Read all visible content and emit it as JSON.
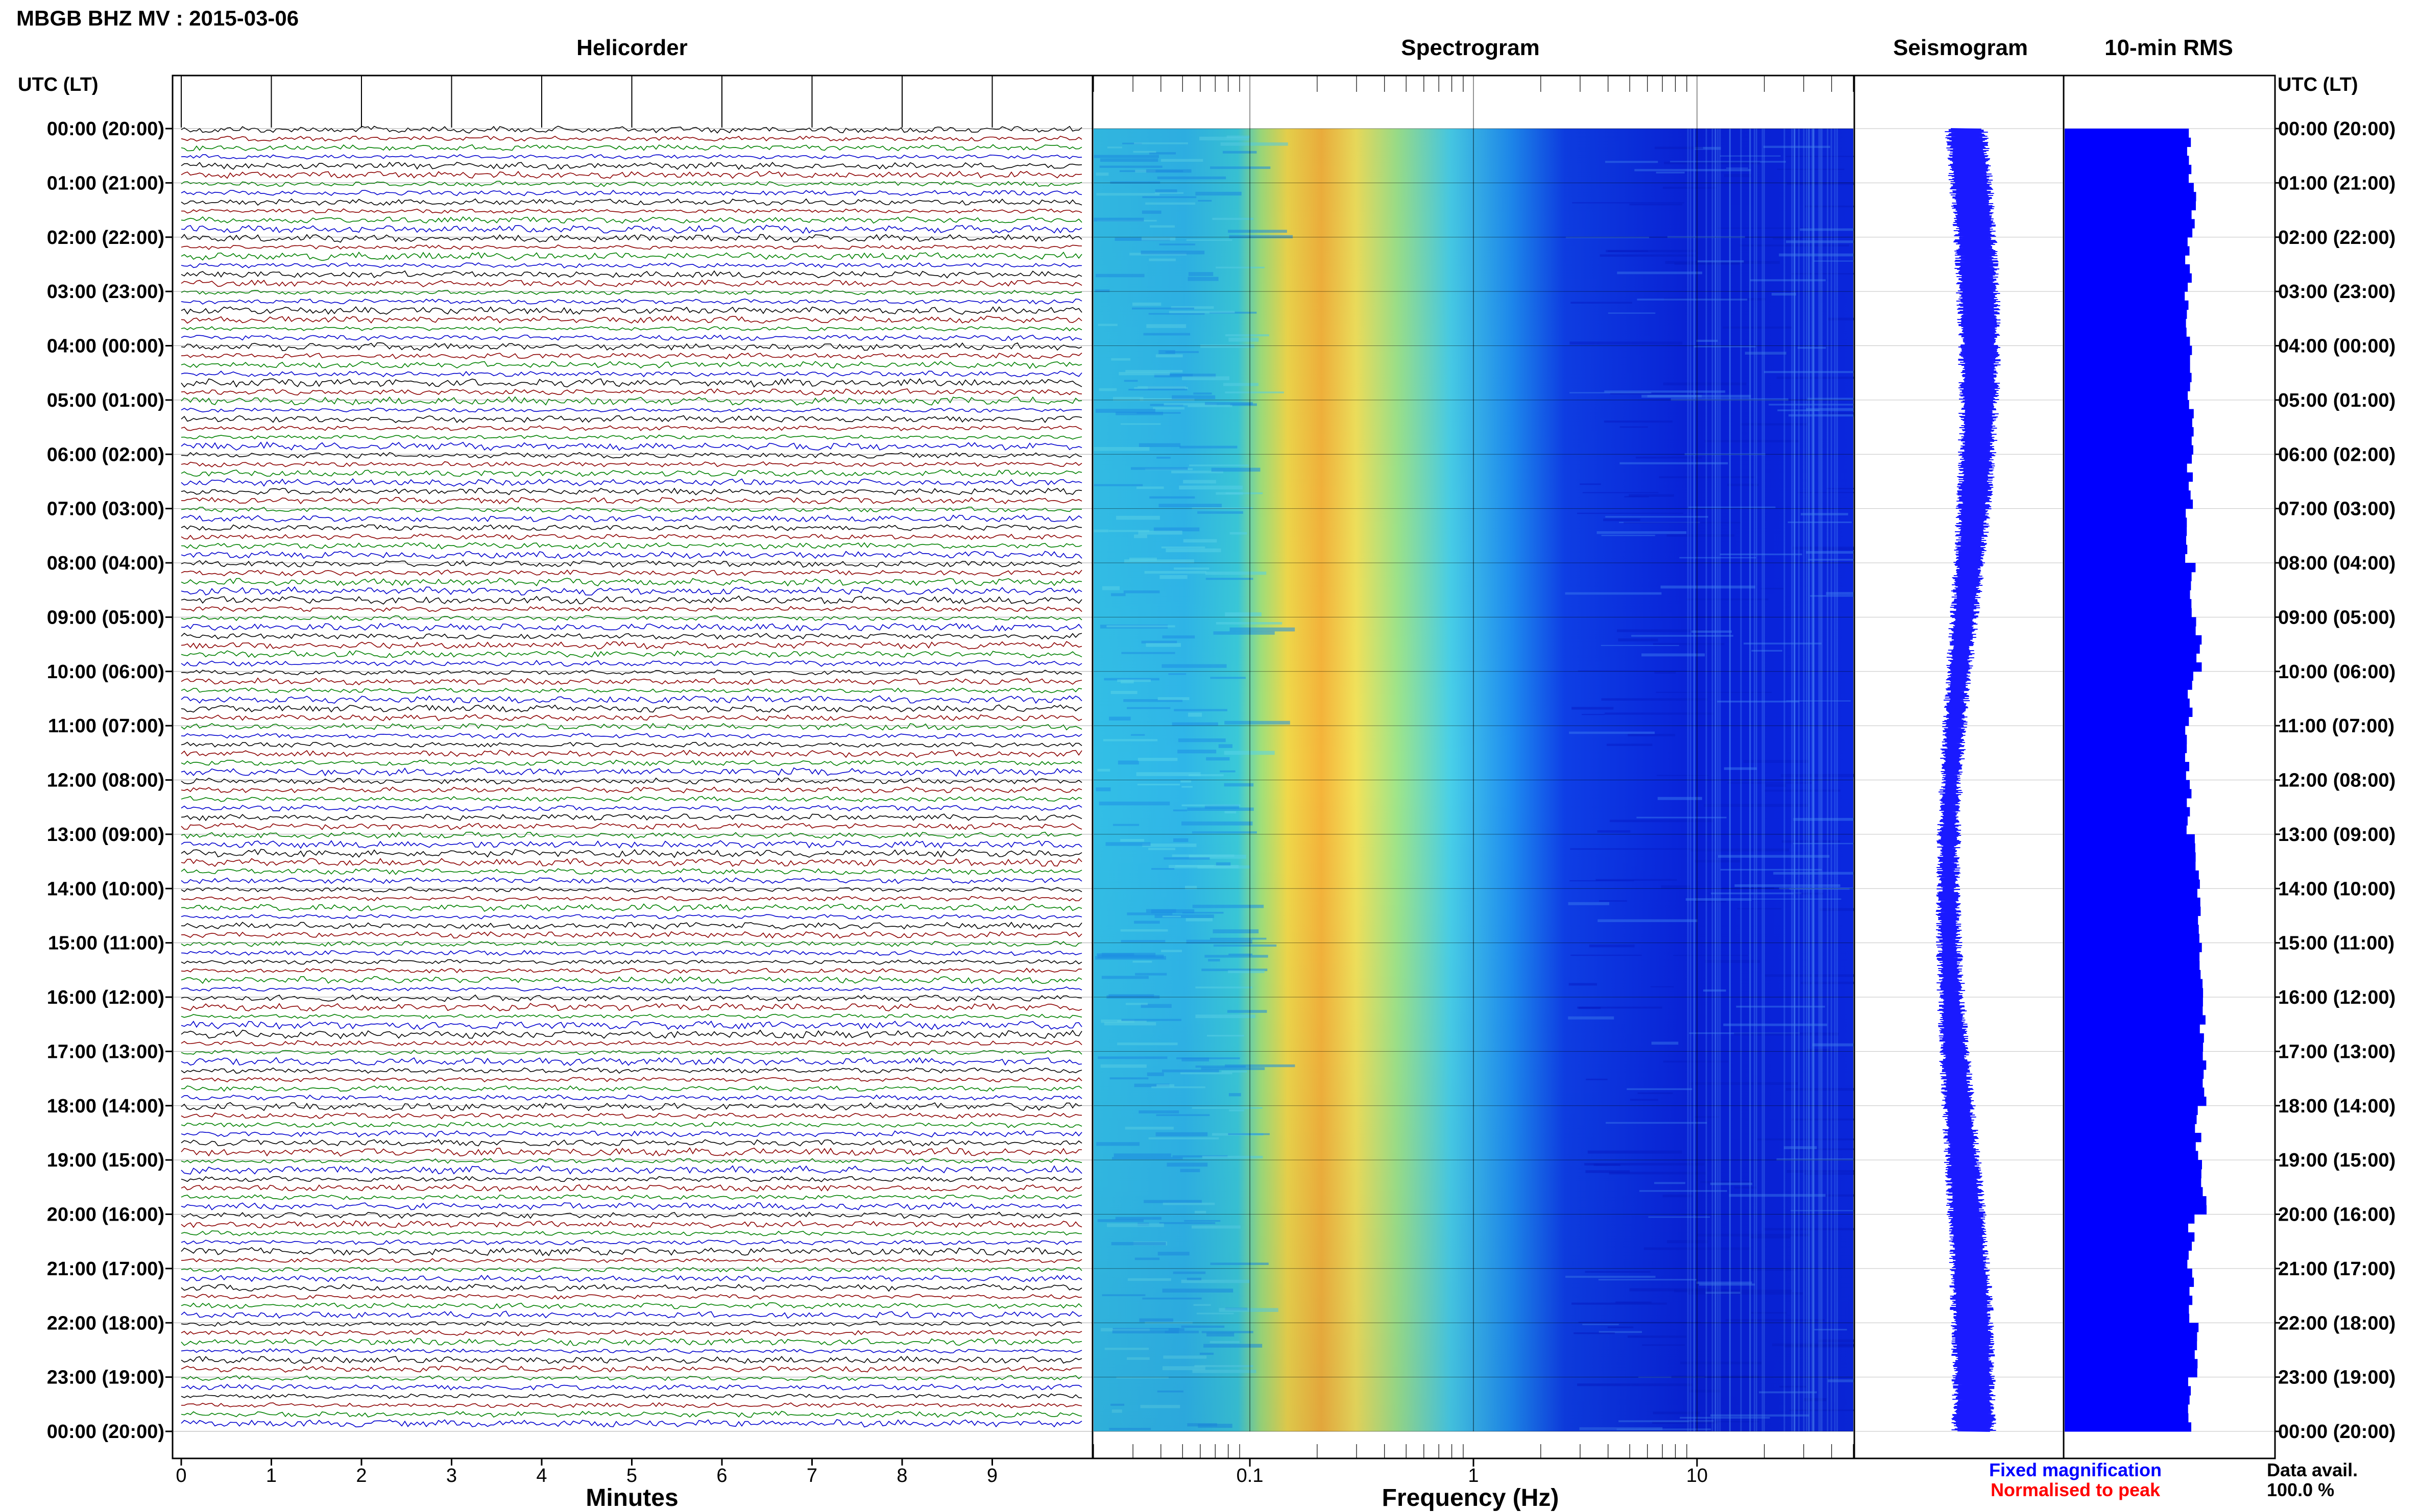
{
  "header": {
    "station_title": "MBGB BHZ MV : 2015-03-06",
    "utc_label": "UTC (LT)",
    "utc_label_right": "UTC (LT)"
  },
  "panels": {
    "helicorder_title": "Helicorder",
    "spectrogram_title": "Spectrogram",
    "seismogram_title": "Seismogram",
    "rms_title": "10-min RMS"
  },
  "time_labels": [
    "00:00 (20:00)",
    "01:00 (21:00)",
    "02:00 (22:00)",
    "03:00 (23:00)",
    "04:00 (00:00)",
    "05:00 (01:00)",
    "06:00 (02:00)",
    "07:00 (03:00)",
    "08:00 (04:00)",
    "09:00 (05:00)",
    "10:00 (06:00)",
    "11:00 (07:00)",
    "12:00 (08:00)",
    "13:00 (09:00)",
    "14:00 (10:00)",
    "15:00 (11:00)",
    "16:00 (12:00)",
    "17:00 (13:00)",
    "18:00 (14:00)",
    "19:00 (15:00)",
    "20:00 (16:00)",
    "21:00 (17:00)",
    "22:00 (18:00)",
    "23:00 (19:00)",
    "00:00 (20:00)"
  ],
  "footer": {
    "legend_fixed": "Fixed magnification",
    "legend_normalised": "Normalised to peak",
    "data_avail_label": "Data avail.",
    "data_avail_value": "100.0 %"
  },
  "colors": {
    "helicorder_traces": [
      "#000000",
      "#8b0000",
      "#008000",
      "#0000cd"
    ],
    "seismogram": "#1a1aff",
    "rms": "#0000ff",
    "legend_fixed": "#0000ff",
    "legend_normalised": "#ff0000"
  },
  "chart_data": [
    {
      "type": "line",
      "name": "helicorder",
      "title": "Helicorder",
      "xlabel": "Minutes",
      "x_ticks": [
        "0",
        "1",
        "2",
        "3",
        "4",
        "5",
        "6",
        "7",
        "8",
        "9"
      ],
      "xlim": [
        0,
        10
      ],
      "traces_per_hour": 6,
      "hours": 24,
      "trace_color_cycle": [
        "black",
        "darkred",
        "green",
        "blue"
      ]
    },
    {
      "type": "heatmap",
      "name": "spectrogram",
      "title": "Spectrogram",
      "xlabel": "Frequency (Hz)",
      "x_scale": "log",
      "x_ticks": [
        "0.1",
        "1",
        "10"
      ],
      "xlim_hz": [
        0.02,
        50
      ],
      "peak_band_hz": [
        0.2,
        0.45
      ],
      "colormap": "jet"
    },
    {
      "type": "line",
      "name": "seismogram",
      "title": "Seismogram",
      "orientation": "vertical"
    },
    {
      "type": "bar",
      "name": "rms",
      "title": "10-min RMS",
      "orientation": "horizontal",
      "bins": 144,
      "hourly_relative_rms": [
        0.84,
        0.87,
        0.83,
        0.82,
        0.85,
        0.86,
        0.84,
        0.83,
        0.86,
        0.9,
        0.85,
        0.83,
        0.84,
        0.89,
        0.91,
        0.93,
        0.93,
        0.93,
        0.9,
        0.93,
        0.85,
        0.85,
        0.88,
        0.83
      ]
    }
  ]
}
